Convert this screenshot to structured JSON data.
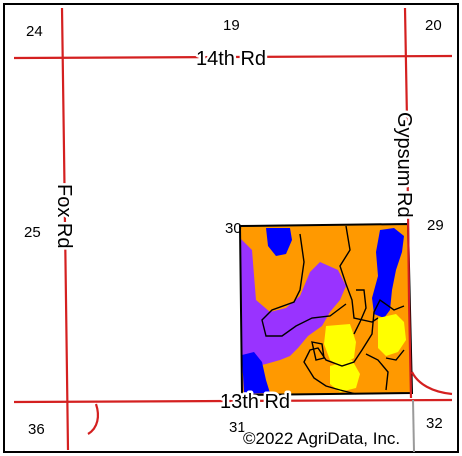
{
  "map": {
    "section_numbers": {
      "s24": "24",
      "s19": "19",
      "s20": "20",
      "s25": "25",
      "s30": "30",
      "s29": "29",
      "s36": "36",
      "s31": "31",
      "s32": "32"
    },
    "roads": {
      "north": "14th Rd",
      "south": "13th Rd",
      "west": "Fox Rd",
      "east": "Gypsum Rd"
    },
    "copyright": "©2022 AgriData, Inc.",
    "colors": {
      "road": "#d42020",
      "soil_orange": "#ff9900",
      "soil_purple": "#9933ff",
      "soil_blue": "#0000ff",
      "soil_yellow": "#ffff00",
      "section_line_gray": "#9a9a9a"
    }
  }
}
